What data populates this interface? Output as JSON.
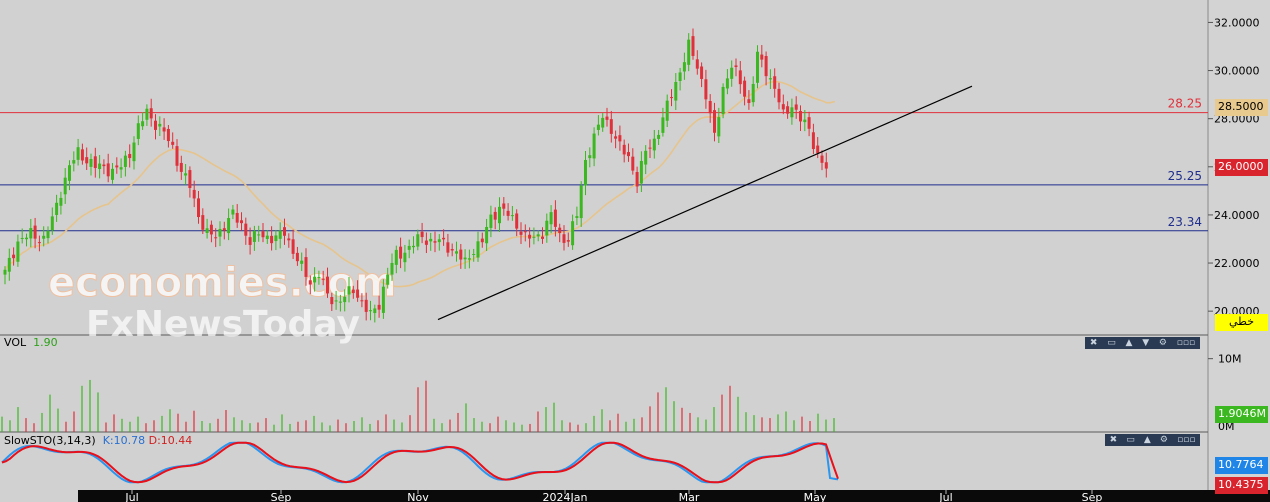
{
  "chart_data": {
    "type": "candlestick",
    "price_axis": {
      "ticks": [
        "32.0000",
        "30.0000",
        "28.0000",
        "26.0000",
        "24.0000",
        "22.0000",
        "20.0000"
      ],
      "range": [
        19.3,
        32.6
      ]
    },
    "time_axis": {
      "labels": [
        "Jul",
        "Sep",
        "Nov",
        "2024Jan",
        "Mar",
        "May",
        "Jul",
        "Sep"
      ]
    },
    "horizontal_lines": [
      {
        "value": 28.25,
        "label": "28.25",
        "color": "#e0303a"
      },
      {
        "value": 25.25,
        "label": "25.25",
        "color": "#1f2e8c"
      },
      {
        "value": 23.34,
        "label": "23.34",
        "color": "#1f2e8c"
      }
    ],
    "trendline": {
      "from": 19.65,
      "to": 29.35,
      "color": "#000000"
    },
    "ma_color": "#e6c48c",
    "price_tags": [
      {
        "text": "28.5000",
        "value": 28.5,
        "bg": "#e8c98e",
        "fg": "#000000"
      },
      {
        "text": "26.0000",
        "value": 26.0,
        "bg": "#d9242e",
        "fg": "#ffffff"
      },
      {
        "text": "خطي",
        "bg": "#ffff00",
        "fg": "#000000"
      }
    ],
    "watermark": [
      "economies.com",
      "FxNewsToday"
    ],
    "volume_panel": {
      "label": "VOL",
      "value": "1.90",
      "axis_tick": "10M",
      "zero_tick": "0M",
      "last_tag": "1.9046M"
    },
    "stochastic_panel": {
      "label": "SlowSTO(3,14,3)",
      "k_text": "K:10.78",
      "d_text": "D:10.44",
      "k_tag": "10.7764",
      "d_tag": "10.4375"
    },
    "toolbar_glyphs": [
      "✖",
      "▭",
      "▲",
      "▼",
      "⚙",
      "▫▫▫"
    ],
    "up_color": "#3bb71f",
    "down_color": "#e0303a",
    "k_color": "#2a96f0",
    "d_color": "#e8101a",
    "series": [
      {
        "name": "candles_close_path",
        "points": [
          [
            0,
            21.6
          ],
          [
            3,
            22.9
          ],
          [
            6,
            23.2
          ],
          [
            9,
            23.0
          ],
          [
            11,
            23.8
          ],
          [
            13,
            25.0
          ],
          [
            15,
            26.0
          ],
          [
            17,
            26.6
          ],
          [
            19,
            26.3
          ],
          [
            21,
            26.0
          ],
          [
            23,
            26.0
          ],
          [
            25,
            25.8
          ],
          [
            27,
            26.0
          ],
          [
            29,
            26.6
          ],
          [
            31,
            27.6
          ],
          [
            33,
            28.3
          ],
          [
            35,
            27.8
          ],
          [
            37,
            27.4
          ],
          [
            39,
            26.8
          ],
          [
            41,
            25.8
          ],
          [
            43,
            25.2
          ],
          [
            45,
            24.0
          ],
          [
            47,
            23.2
          ],
          [
            49,
            23.1
          ],
          [
            51,
            23.6
          ],
          [
            53,
            24.0
          ],
          [
            55,
            23.6
          ],
          [
            57,
            22.9
          ],
          [
            59,
            23.2
          ],
          [
            61,
            23.1
          ],
          [
            63,
            23.0
          ],
          [
            65,
            23.3
          ],
          [
            67,
            22.5
          ],
          [
            69,
            21.8
          ],
          [
            71,
            21.2
          ],
          [
            73,
            21.6
          ],
          [
            75,
            20.6
          ],
          [
            77,
            20.4
          ],
          [
            79,
            20.6
          ],
          [
            81,
            20.9
          ],
          [
            83,
            20.4
          ],
          [
            85,
            19.8
          ],
          [
            87,
            20.3
          ],
          [
            89,
            21.6
          ],
          [
            91,
            22.3
          ],
          [
            93,
            22.5
          ],
          [
            95,
            22.8
          ],
          [
            97,
            23.1
          ],
          [
            99,
            22.9
          ],
          [
            101,
            22.9
          ],
          [
            103,
            22.7
          ],
          [
            105,
            22.4
          ],
          [
            107,
            22.0
          ],
          [
            109,
            22.6
          ],
          [
            111,
            22.9
          ],
          [
            113,
            23.9
          ],
          [
            115,
            24.3
          ],
          [
            117,
            24.0
          ],
          [
            119,
            23.6
          ],
          [
            121,
            23.1
          ],
          [
            123,
            23.0
          ],
          [
            125,
            23.3
          ],
          [
            127,
            24.0
          ],
          [
            129,
            23.1
          ],
          [
            131,
            23.0
          ],
          [
            133,
            24.0
          ],
          [
            135,
            26.3
          ],
          [
            137,
            27.2
          ],
          [
            139,
            28.1
          ],
          [
            141,
            27.6
          ],
          [
            143,
            26.8
          ],
          [
            145,
            26.4
          ],
          [
            147,
            25.4
          ],
          [
            149,
            26.6
          ],
          [
            151,
            27.1
          ],
          [
            153,
            28.0
          ],
          [
            155,
            29.0
          ],
          [
            157,
            30.0
          ],
          [
            159,
            31.0
          ],
          [
            161,
            30.2
          ],
          [
            163,
            29.0
          ],
          [
            165,
            27.2
          ],
          [
            167,
            29.3
          ],
          [
            169,
            30.2
          ],
          [
            171,
            29.5
          ],
          [
            173,
            28.6
          ],
          [
            175,
            30.6
          ],
          [
            177,
            30.0
          ],
          [
            179,
            29.3
          ],
          [
            181,
            28.1
          ],
          [
            183,
            28.6
          ],
          [
            185,
            28.0
          ],
          [
            187,
            27.5
          ],
          [
            189,
            26.5
          ],
          [
            191,
            25.9
          ]
        ]
      },
      {
        "name": "volume_millions",
        "values": [
          2.1,
          1.6,
          3.4,
          1.9,
          1.2,
          2.6,
          5.1,
          3.2,
          1.4,
          2.8,
          6.3,
          7.1,
          5.4,
          1.3,
          2.4,
          1.8,
          1.4,
          2.1,
          1.2,
          1.6,
          2.2,
          3.1,
          2.5,
          1.4,
          2.9,
          1.5,
          1.2,
          1.8,
          3.0,
          2.0,
          1.6,
          1.2,
          1.3,
          1.9,
          1.0,
          2.4,
          1.1,
          1.4,
          1.6,
          2.2,
          1.3,
          0.9,
          1.7,
          1.2,
          1.5,
          2.0,
          1.1,
          1.6,
          2.4,
          1.7,
          1.3,
          2.3,
          6.1,
          7.0,
          1.8,
          1.2,
          1.7,
          2.6,
          3.9,
          1.9,
          1.4,
          1.2,
          2.1,
          1.6,
          1.3,
          1.0,
          1.1,
          2.8,
          3.4,
          4.0,
          1.6,
          1.3,
          1.0,
          1.2,
          2.2,
          3.1,
          1.6,
          2.5,
          1.4,
          1.8,
          2.0,
          3.5,
          5.4,
          6.1,
          4.2,
          3.3,
          2.6,
          2.0,
          1.7,
          3.4,
          5.1,
          6.3,
          4.8,
          2.7,
          2.3,
          2.0,
          1.9,
          2.4,
          2.8,
          1.6,
          2.1,
          1.5,
          2.5,
          1.7,
          1.9
        ]
      }
    ]
  }
}
